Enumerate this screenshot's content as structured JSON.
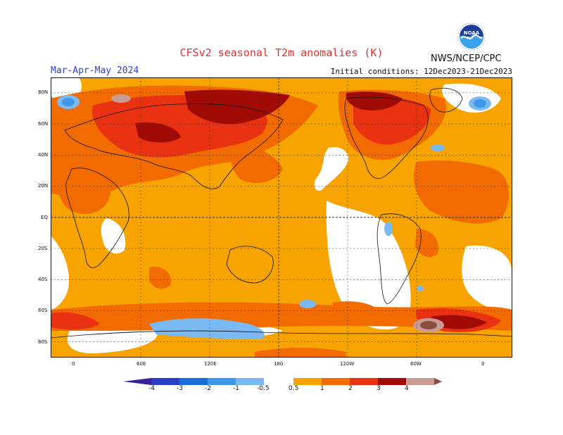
{
  "title": "CFSv2 seasonal T2m anomalies (K)",
  "source": "NWS/NCEP/CPC",
  "season": "Mar-Apr-May 2024",
  "initial_conditions": "Initial conditions: 12Dec2023-21Dec2023",
  "logo": {
    "text": "NOAA",
    "icon": "noaa-logo-icon"
  },
  "lat_labels": [
    "80N",
    "60N",
    "40N",
    "20N",
    "EQ",
    "20S",
    "40S",
    "60S",
    "80S"
  ],
  "lon_labels": [
    "0",
    "60E",
    "120E",
    "180",
    "120W",
    "60W",
    "0"
  ],
  "colorbar": {
    "labels": [
      "-4",
      "-3",
      "-2",
      "-1",
      "-0.5",
      "0.5",
      "1",
      "2",
      "3",
      "4"
    ],
    "colors": {
      "lt_m4": "#3a1f9a",
      "m4_m3": "#2c3ec7",
      "m3_m2": "#1c6cdb",
      "m2_m1": "#3f97ea",
      "m1_m05": "#7ab9f2",
      "neutral": "#ffffff",
      "p05_p1": "#f7a400",
      "p1_p2": "#f26b00",
      "p2_p3": "#e83212",
      "p3_p4": "#a00c05",
      "p4_p5": "#c89c92",
      "gt_p5": "#8a4e3e"
    }
  }
}
